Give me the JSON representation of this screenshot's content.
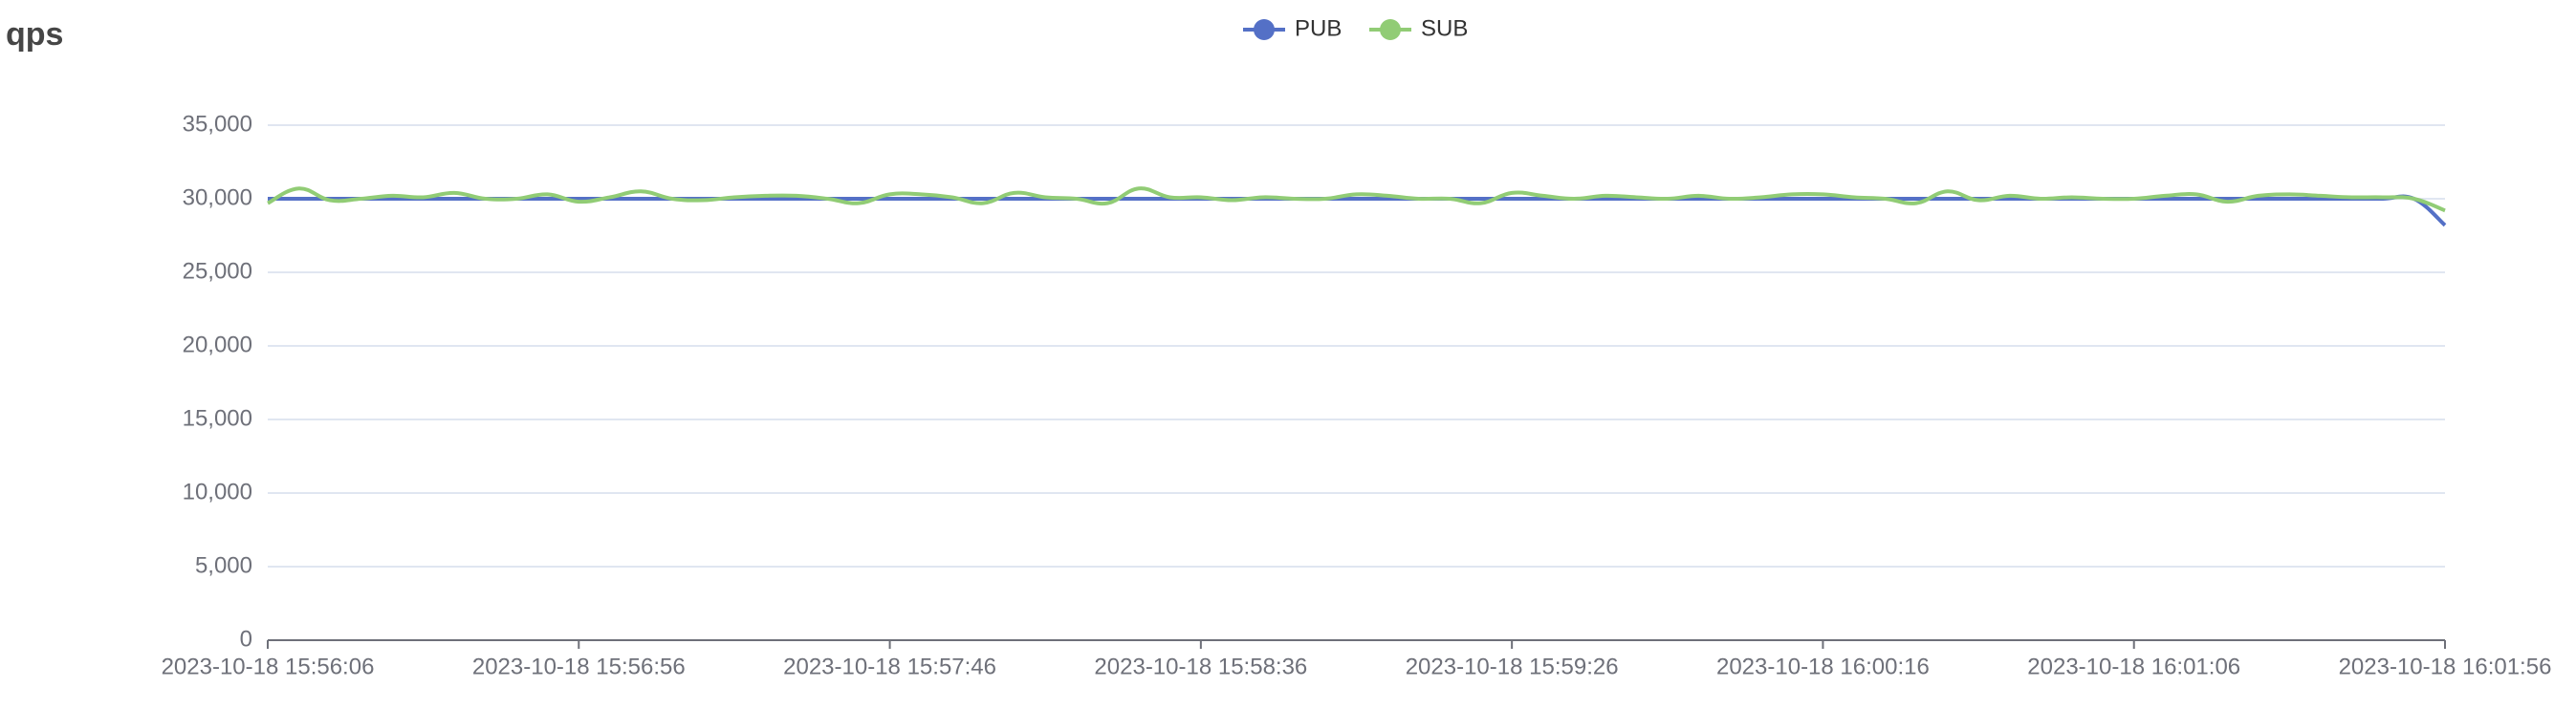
{
  "chart_data": {
    "type": "line",
    "title": "qps",
    "categories": [
      "2023-10-18 15:56:06",
      null,
      null,
      null,
      null,
      null,
      null,
      null,
      null,
      null,
      "2023-10-18 15:56:56",
      null,
      null,
      null,
      null,
      null,
      null,
      null,
      null,
      null,
      "2023-10-18 15:57:46",
      null,
      null,
      null,
      null,
      null,
      null,
      null,
      null,
      null,
      "2023-10-18 15:58:36",
      null,
      null,
      null,
      null,
      null,
      null,
      null,
      null,
      null,
      "2023-10-18 15:59:26",
      null,
      null,
      null,
      null,
      null,
      null,
      null,
      null,
      null,
      "2023-10-18 16:00:16",
      null,
      null,
      null,
      null,
      null,
      null,
      null,
      null,
      null,
      "2023-10-18 16:01:06",
      null,
      null,
      null,
      null,
      null,
      null,
      null,
      null,
      null,
      "2023-10-18 16:01:56"
    ],
    "series": [
      {
        "name": "PUB",
        "color": "#5470c6",
        "values": [
          30000,
          30000,
          30000,
          30000,
          30000,
          30000,
          30000,
          30000,
          30000,
          30000,
          30000,
          30000,
          30000,
          30000,
          30000,
          30000,
          30000,
          30000,
          30000,
          30000,
          30000,
          30000,
          30000,
          30000,
          30000,
          30000,
          30000,
          30000,
          30000,
          30000,
          30000,
          30000,
          30000,
          30000,
          30000,
          30000,
          30000,
          30000,
          30000,
          30000,
          30000,
          30000,
          30000,
          30000,
          30000,
          30000,
          30000,
          30000,
          30000,
          30000,
          30000,
          30000,
          30000,
          30000,
          30000,
          30000,
          30000,
          30000,
          30000,
          30000,
          30000,
          30000,
          30000,
          30000,
          30000,
          30000,
          30000,
          30000,
          30000,
          30000,
          28200
        ]
      },
      {
        "name": "SUB",
        "color": "#91cc75",
        "values": [
          29700,
          30700,
          29900,
          30000,
          30200,
          30100,
          30400,
          30000,
          30000,
          30300,
          29800,
          30100,
          30500,
          30000,
          29900,
          30100,
          30200,
          30200,
          30000,
          29700,
          30300,
          30300,
          30100,
          29700,
          30400,
          30100,
          30000,
          29700,
          30700,
          30100,
          30100,
          29900,
          30100,
          30000,
          30000,
          30300,
          30200,
          30000,
          30000,
          29700,
          30400,
          30200,
          30000,
          30200,
          30100,
          30000,
          30200,
          30000,
          30100,
          30300,
          30300,
          30100,
          30000,
          29700,
          30500,
          29900,
          30200,
          30000,
          30100,
          30000,
          30000,
          30200,
          30300,
          29800,
          30200,
          30300,
          30200,
          30100,
          30100,
          30000,
          29200
        ]
      }
    ],
    "ylim": [
      0,
      35000
    ],
    "yticks": [
      {
        "value": 0,
        "label": "0"
      },
      {
        "value": 5000,
        "label": "5,000"
      },
      {
        "value": 10000,
        "label": "10,000"
      },
      {
        "value": 15000,
        "label": "15,000"
      },
      {
        "value": 20000,
        "label": "20,000"
      },
      {
        "value": 25000,
        "label": "25,000"
      },
      {
        "value": 30000,
        "label": "30,000"
      },
      {
        "value": 35000,
        "label": "35,000"
      }
    ],
    "grid": true
  }
}
